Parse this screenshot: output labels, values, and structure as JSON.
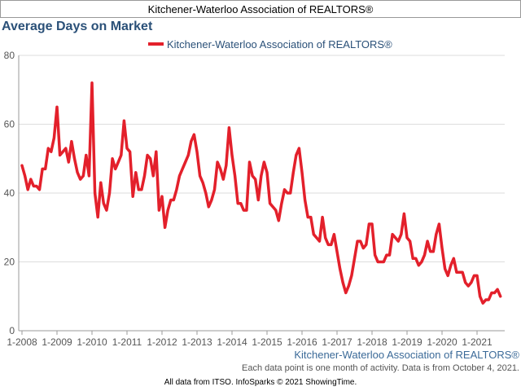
{
  "header": {
    "title": "Kitchener-Waterloo Association of REALTORS®"
  },
  "colors": {
    "line": "#e3202b",
    "title": "#2a5078",
    "axis_text": "#555555",
    "grid": "#dddddd"
  },
  "chart_data": {
    "type": "line",
    "title": "Average Days on Market",
    "xlabel": "",
    "ylabel": "",
    "ylim": [
      0,
      80
    ],
    "yticks": [
      "0",
      "20",
      "40",
      "60",
      "80"
    ],
    "xticks": [
      "1-2008",
      "1-2009",
      "1-2010",
      "1-2011",
      "1-2012",
      "1-2013",
      "1-2014",
      "1-2015",
      "1-2016",
      "1-2017",
      "1-2018",
      "1-2019",
      "1-2020",
      "1-2021"
    ],
    "grid": true,
    "legend_position": "top",
    "series": [
      {
        "name": "Kitchener-Waterloo Association of REALTORS®",
        "x_start": "1-2008",
        "interval": "month",
        "values": [
          48,
          45,
          41,
          44,
          42,
          42,
          41,
          47,
          47,
          53,
          52,
          56,
          65,
          51,
          52,
          53,
          49,
          55,
          50,
          46,
          44,
          45,
          51,
          45,
          72,
          40,
          33,
          43,
          37,
          35,
          40,
          50,
          47,
          49,
          51,
          61,
          53,
          52,
          39,
          46,
          41,
          41,
          45,
          51,
          50,
          45,
          52,
          35,
          39,
          30,
          35,
          38,
          38,
          41,
          45,
          47,
          49,
          51,
          55,
          57,
          52,
          45,
          43,
          40,
          36,
          38,
          41,
          49,
          47,
          44,
          48,
          59,
          51,
          45,
          37,
          37,
          35,
          35,
          49,
          45,
          44,
          38,
          45,
          49,
          46,
          37,
          36,
          35,
          32,
          37,
          41,
          40,
          40,
          46,
          51,
          53,
          46,
          38,
          33,
          33,
          28,
          27,
          26,
          33,
          27,
          25,
          25,
          28,
          23,
          18,
          14,
          11,
          13,
          16,
          21,
          26,
          26,
          24,
          25,
          31,
          31,
          22,
          20,
          20,
          20,
          22,
          22,
          28,
          27,
          26,
          28,
          34,
          27,
          26,
          21,
          21,
          19,
          20,
          22,
          26,
          23,
          23,
          28,
          31,
          24,
          18,
          16,
          19,
          21,
          17,
          17,
          17,
          14,
          13,
          14,
          16,
          16,
          10,
          8,
          9,
          9,
          11,
          11,
          12,
          10
        ]
      }
    ]
  },
  "source_label": "Kitchener-Waterloo Association of REALTORS®",
  "note": "Each data point is one month of activity. Data is from October 4, 2021.",
  "footer": "All data from ITSO. InfoSparks © 2021 ShowingTime."
}
